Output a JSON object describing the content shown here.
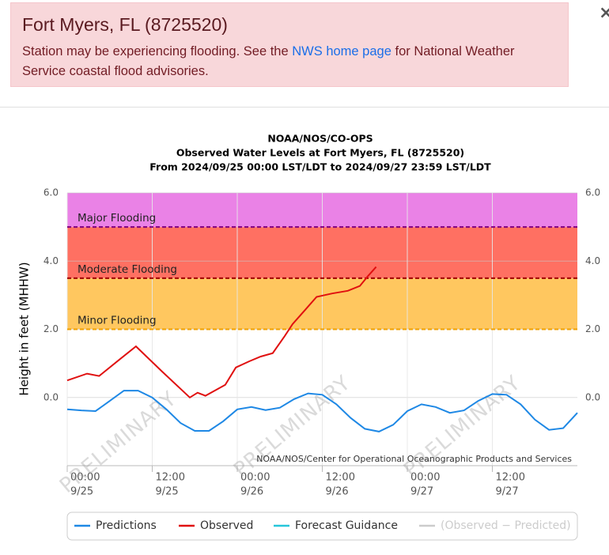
{
  "alert": {
    "title": "Fort Myers, FL (8725520)",
    "text_before": "Station may be experiencing flooding. See the",
    "link": "NWS home page",
    "text_after": "for National Weather Service coastal flood advisories.",
    "close": "×"
  },
  "chart_data": {
    "type": "line",
    "title": [
      "NOAA/NOS/CO-OPS",
      "Observed Water Levels at Fort Myers, FL (8725520)",
      "From 2024/09/25 00:00 LST/LDT to 2024/09/27 23:59 LST/LDT"
    ],
    "ylabel": "Height in feet (MHHW)",
    "credit": "NOAA/NOS/Center for Operational Oceanographic Products and Services",
    "watermark": "PRELIMINARY",
    "xlim": [
      0,
      72
    ],
    "xticks": [
      {
        "value": 0,
        "label": "00:00"
      },
      {
        "value": 12,
        "label": "12:00"
      },
      {
        "value": 24,
        "label": "00:00"
      },
      {
        "value": 36,
        "label": "12:00"
      },
      {
        "value": 48,
        "label": "00:00"
      },
      {
        "value": 60,
        "label": "12:00"
      }
    ],
    "xtick_dates": [
      "9/25",
      "9/25",
      "9/26",
      "9/26",
      "9/27",
      "9/27"
    ],
    "ylim": [
      -2,
      6
    ],
    "yticks": [
      {
        "value": 0,
        "label": "0.0"
      },
      {
        "value": 2,
        "label": "2.0"
      },
      {
        "value": 4,
        "label": "4.0"
      },
      {
        "value": 6,
        "label": "6.0"
      }
    ],
    "grid": true,
    "thresholds": [
      {
        "name": "Minor Flooding",
        "value": 2.0,
        "color": "#ffc75f",
        "line": "#f0a000"
      },
      {
        "name": "Moderate Flooding",
        "value": 3.5,
        "color": "#ff7062",
        "line": "#a00000"
      },
      {
        "name": "Major Flooding",
        "value": 5.0,
        "color": "#ea82e6",
        "line": "#800080"
      }
    ],
    "series": [
      {
        "name": "Predictions",
        "color": "#1e88e5",
        "x": [
          0,
          2,
          4,
          6,
          8,
          10,
          12,
          14,
          16,
          18,
          20,
          22,
          24,
          26,
          28,
          30,
          32,
          34,
          36,
          38,
          40,
          42,
          44,
          46,
          48,
          50,
          52,
          54,
          56,
          58,
          60,
          62,
          64,
          66,
          68,
          70,
          72
        ],
        "values": [
          -0.35,
          -0.38,
          -0.4,
          -0.1,
          0.2,
          0.2,
          0.0,
          -0.35,
          -0.75,
          -0.98,
          -0.98,
          -0.7,
          -0.35,
          -0.28,
          -0.37,
          -0.3,
          -0.05,
          0.12,
          0.08,
          -0.2,
          -0.6,
          -0.92,
          -1.0,
          -0.8,
          -0.4,
          -0.2,
          -0.28,
          -0.45,
          -0.38,
          -0.1,
          0.1,
          0.08,
          -0.2,
          -0.65,
          -0.95,
          -0.9,
          -0.45
        ]
      },
      {
        "name": "Observed",
        "color": "#e01010",
        "x": [
          0,
          2.8,
          4.5,
          7.3,
          9.7,
          13.4,
          17.3,
          18.4,
          19.5,
          22.3,
          23.8,
          25.7,
          27.3,
          29,
          30.7,
          31.8,
          33.5,
          35.2,
          37.4,
          39.6,
          41.3,
          42.4,
          43.6
        ],
        "values": [
          0.5,
          0.7,
          0.63,
          1.1,
          1.5,
          0.76,
          0.0,
          0.14,
          0.05,
          0.37,
          0.88,
          1.06,
          1.2,
          1.3,
          1.8,
          2.15,
          2.55,
          2.95,
          3.05,
          3.13,
          3.27,
          3.55,
          3.83
        ]
      },
      {
        "name": "Forecast Guidance",
        "color": "#26c6da",
        "x": [],
        "values": []
      },
      {
        "name": "(Observed − Predicted)",
        "color": "#cccccc",
        "x": [],
        "values": []
      }
    ]
  }
}
